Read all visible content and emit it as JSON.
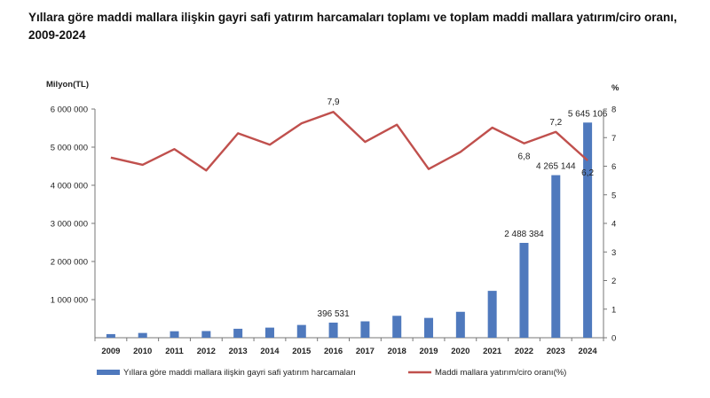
{
  "title": "Yıllara göre maddi mallara ilişkin gayri safi yatırım harcamaları toplamı ve toplam maddi mallara yatırım/ciro oranı, 2009-2024",
  "chart_data": {
    "type": "bar+line",
    "categories": [
      "2009",
      "2010",
      "2011",
      "2012",
      "2013",
      "2014",
      "2015",
      "2016",
      "2017",
      "2018",
      "2019",
      "2020",
      "2021",
      "2022",
      "2023",
      "2024"
    ],
    "series": [
      {
        "name": "Yıllara göre maddi mallara ilişkin gayri safi yatırım harcamaları",
        "type": "bar",
        "axis": "left",
        "color": "#4f79bd",
        "values": [
          95000,
          125000,
          170000,
          175000,
          235000,
          265000,
          335000,
          396531,
          430000,
          575000,
          520000,
          680000,
          1230000,
          2488384,
          4265144,
          5645106
        ]
      },
      {
        "name": "Maddi mallara yatırım/ciro oranı(%)",
        "type": "line",
        "axis": "right",
        "color": "#c0504d",
        "values": [
          6.3,
          6.05,
          6.6,
          5.85,
          7.15,
          6.75,
          7.5,
          7.9,
          6.85,
          7.45,
          5.9,
          6.5,
          7.35,
          6.8,
          7.2,
          6.2
        ]
      }
    ],
    "data_labels": {
      "bar": [
        {
          "index": 7,
          "text": "396 531"
        },
        {
          "index": 13,
          "text": "2 488 384"
        },
        {
          "index": 14,
          "text": "4 265 144"
        },
        {
          "index": 15,
          "text": "5 645 106"
        }
      ],
      "line": [
        {
          "index": 7,
          "text": "7,9"
        },
        {
          "index": 13,
          "text": "6,8"
        },
        {
          "index": 14,
          "text": "7,2"
        },
        {
          "index": 15,
          "text": "6,2"
        }
      ]
    },
    "y_left": {
      "label": "Milyon(TL)",
      "ylim": [
        0,
        6000000
      ],
      "ticks": [
        1000000,
        2000000,
        3000000,
        4000000,
        5000000,
        6000000
      ],
      "tick_labels": [
        "1 000 000",
        "2 000 000",
        "3 000 000",
        "4 000 000",
        "5 000 000",
        "6 000 000"
      ]
    },
    "y_right": {
      "label": "%",
      "ylim": [
        0,
        8
      ],
      "ticks": [
        0,
        1,
        2,
        3,
        4,
        5,
        6,
        7,
        8
      ],
      "tick_labels": [
        "0",
        "1",
        "2",
        "3",
        "4",
        "5",
        "6",
        "7",
        "8"
      ]
    },
    "grid": false,
    "legend_position": "bottom"
  }
}
